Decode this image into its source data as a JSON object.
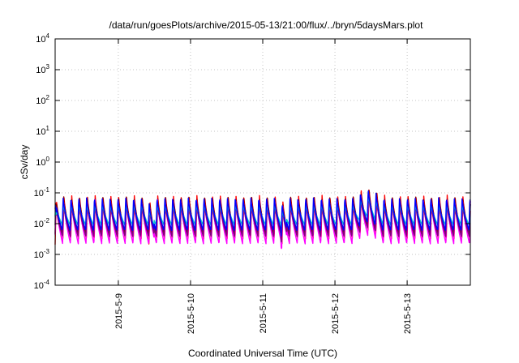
{
  "chart_data": {
    "type": "line",
    "title": "/data/run/goesPlots/archive/2015-05-13/21:00/flux/../bryn/5daysMars.plot",
    "xlabel": "Coordinated Universal Time (UTC)",
    "ylabel": "cSv/day",
    "yscale": "log",
    "ylim": [
      0.0001,
      10000
    ],
    "xlim": [
      "2015-05-08 03:00",
      "2015-05-13 21:00"
    ],
    "y_ticks": [
      {
        "base": "10",
        "exp": "-4",
        "value": 0.0001
      },
      {
        "base": "10",
        "exp": "-3",
        "value": 0.001
      },
      {
        "base": "10",
        "exp": "-2",
        "value": 0.01
      },
      {
        "base": "10",
        "exp": "-1",
        "value": 0.1
      },
      {
        "base": "10",
        "exp": "0",
        "value": 1
      },
      {
        "base": "10",
        "exp": "1",
        "value": 10
      },
      {
        "base": "10",
        "exp": "2",
        "value": 100
      },
      {
        "base": "10",
        "exp": "3",
        "value": 1000
      },
      {
        "base": "10",
        "exp": "4",
        "value": 10000
      }
    ],
    "x_ticks": [
      "2015-5-9",
      "2015-5-10",
      "2015-5-11",
      "2015-5-12",
      "2015-5-13"
    ],
    "x_tick_dates": [
      "2015-05-09 00:00",
      "2015-05-10 00:00",
      "2015-05-11 00:00",
      "2015-05-12 00:00",
      "2015-05-13 00:00"
    ],
    "grid": true,
    "cycle_hours": 2.6,
    "series": [
      {
        "color": "#ff0000",
        "peak": 0.085,
        "trough": 0.0032
      },
      {
        "color": "#8b0000",
        "peak": 0.075,
        "trough": 0.0045
      },
      {
        "color": "#ff00ff",
        "peak": 0.06,
        "trough": 0.0022
      },
      {
        "color": "#800080",
        "peak": 0.05,
        "trough": 0.0038
      },
      {
        "color": "#00cccc",
        "peak": 0.045,
        "trough": 0.009
      },
      {
        "color": "#0000ff",
        "peak": 0.07,
        "trough": 0.006
      }
    ],
    "events": [
      {
        "start": "2015-05-12 06:00",
        "end": "2015-05-12 16:00",
        "factor": 1.9
      }
    ],
    "dips": [
      "2015-05-08 02:30",
      "2015-05-09 11:00",
      "2015-05-11 07:00"
    ]
  }
}
